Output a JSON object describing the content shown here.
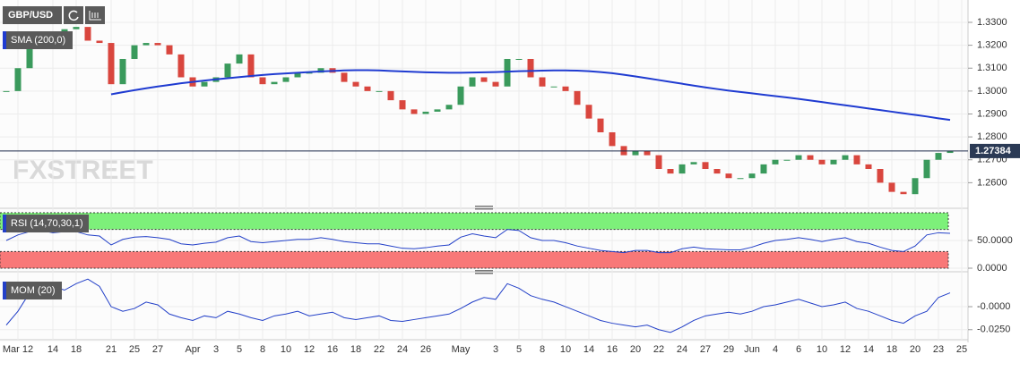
{
  "chart_data": [
    {
      "type": "candlestick",
      "title": "GBP/USD",
      "watermark": "FXSTREET",
      "categories": [
        null,
        "Mar 12",
        null,
        null,
        "14",
        null,
        "18",
        null,
        null,
        "21",
        null,
        "25",
        null,
        "27",
        null,
        null,
        "Apr",
        null,
        "3",
        null,
        "5",
        null,
        "8",
        null,
        "10",
        null,
        "12",
        null,
        "16",
        null,
        "18",
        null,
        "22",
        null,
        "24",
        null,
        "26",
        null,
        null,
        "May",
        null,
        null,
        "3",
        null,
        "5",
        null,
        "8",
        null,
        "10",
        null,
        "14",
        null,
        "16",
        null,
        "20",
        null,
        "22",
        null,
        "24",
        null,
        "27",
        null,
        "29",
        null,
        "Jun",
        null,
        "4",
        null,
        "6",
        null,
        "10",
        null,
        "12",
        null,
        "14",
        null,
        "18",
        null,
        "20",
        null,
        "23",
        null,
        "25"
      ],
      "close": [
        1.3,
        1.31,
        1.32,
        1.3255,
        1.324,
        1.327,
        1.328,
        1.322,
        1.321,
        1.303,
        1.314,
        1.32,
        1.321,
        1.32,
        1.316,
        1.306,
        1.302,
        1.304,
        1.306,
        1.312,
        1.316,
        1.306,
        1.303,
        1.304,
        1.306,
        1.308,
        1.308,
        1.31,
        1.308,
        1.304,
        1.302,
        1.3,
        1.3,
        1.296,
        1.292,
        1.29,
        1.291,
        1.292,
        1.294,
        1.302,
        1.306,
        1.304,
        1.302,
        1.314,
        1.314,
        1.306,
        1.302,
        1.302,
        1.3,
        1.294,
        1.288,
        1.282,
        1.276,
        1.272,
        1.274,
        1.272,
        1.266,
        1.264,
        1.268,
        1.269,
        1.266,
        1.264,
        1.262,
        1.262,
        1.264,
        1.268,
        1.27,
        1.27,
        1.272,
        1.27,
        1.268,
        1.27,
        1.272,
        1.268,
        1.266,
        1.26,
        1.256,
        1.255,
        1.262,
        1.27,
        1.273,
        1.2738,
        null
      ],
      "up_color": "#3a9a5c",
      "down_color": "#d9463e",
      "series": [
        {
          "name": "SMA (200,0)",
          "color": "#1f3bd1",
          "values": [
            null,
            null,
            null,
            null,
            null,
            null,
            null,
            null,
            null,
            1.2986,
            1.2995,
            1.3004,
            1.3012,
            1.302,
            1.3027,
            1.3034,
            1.304,
            1.3046,
            1.3051,
            1.3056,
            1.3061,
            1.3066,
            1.307,
            1.3074,
            1.3077,
            1.308,
            1.3083,
            1.3086,
            1.3088,
            1.309,
            1.3091,
            1.3091,
            1.309,
            1.3088,
            1.3086,
            1.3084,
            1.3082,
            1.3081,
            1.308,
            1.308,
            1.3081,
            1.3082,
            1.3083,
            1.3085,
            1.3087,
            1.3088,
            1.3089,
            1.309,
            1.309,
            1.3089,
            1.3087,
            1.3083,
            1.3078,
            1.3071,
            1.3064,
            1.3056,
            1.3048,
            1.304,
            1.3032,
            1.3024,
            1.3016,
            1.3009,
            1.3002,
            1.2996,
            1.299,
            1.2984,
            1.2978,
            1.2972,
            1.2966,
            1.2959,
            1.2952,
            1.2945,
            1.2938,
            1.2931,
            1.2924,
            1.2917,
            1.291,
            1.2903,
            1.2896,
            1.2889,
            1.2881,
            1.2874,
            null
          ]
        }
      ],
      "last_price": 1.27384,
      "ylim": [
        1.25,
        1.3378
      ],
      "yticks": [
        {
          "value": 1.26,
          "label": "1.2600"
        },
        {
          "value": 1.27,
          "label": "1.2700"
        },
        {
          "value": 1.28,
          "label": "1.2800"
        },
        {
          "value": 1.29,
          "label": "1.2900"
        },
        {
          "value": 1.3,
          "label": "1.3000"
        },
        {
          "value": 1.31,
          "label": "1.3100"
        },
        {
          "value": 1.32,
          "label": "1.3200"
        },
        {
          "value": 1.33,
          "label": "1.3300"
        }
      ]
    },
    {
      "type": "line",
      "title": "RSI (14,70,30,1)",
      "color": "#2340c8",
      "overbought": 70,
      "oversold": 30,
      "overbought_color": "#7df07a",
      "oversold_color": "#f87878",
      "values": [
        50,
        60,
        66,
        68,
        64,
        66,
        66,
        60,
        58,
        42,
        52,
        56,
        57,
        55,
        52,
        44,
        42,
        45,
        47,
        55,
        58,
        48,
        46,
        48,
        50,
        52,
        52,
        55,
        52,
        48,
        46,
        44,
        44,
        40,
        36,
        35,
        37,
        40,
        42,
        56,
        62,
        58,
        55,
        70,
        68,
        55,
        50,
        50,
        46,
        40,
        36,
        32,
        30,
        28,
        32,
        32,
        28,
        28,
        35,
        38,
        35,
        34,
        33,
        33,
        38,
        45,
        50,
        52,
        55,
        52,
        48,
        52,
        55,
        48,
        45,
        38,
        32,
        30,
        40,
        60,
        64,
        63,
        null
      ],
      "ylim": [
        0,
        100
      ],
      "yticks": [
        {
          "value": 50,
          "label": "50.0000"
        },
        {
          "value": 0,
          "label": "0.0000"
        }
      ]
    },
    {
      "type": "line",
      "title": "MOM (20)",
      "color": "#2340c8",
      "values": [
        -0.02,
        -0.005,
        0.015,
        0.02,
        0.022,
        0.018,
        0.025,
        0.03,
        0.022,
        0.0,
        -0.005,
        -0.002,
        0.005,
        0.002,
        -0.008,
        -0.012,
        -0.015,
        -0.01,
        -0.012,
        -0.005,
        -0.008,
        -0.012,
        -0.015,
        -0.01,
        -0.008,
        -0.005,
        -0.01,
        -0.008,
        -0.006,
        -0.012,
        -0.014,
        -0.012,
        -0.01,
        -0.015,
        -0.016,
        -0.014,
        -0.012,
        -0.01,
        -0.008,
        -0.002,
        0.005,
        0.01,
        0.008,
        0.025,
        0.02,
        0.012,
        0.008,
        0.005,
        0.0,
        -0.005,
        -0.01,
        -0.015,
        -0.018,
        -0.02,
        -0.022,
        -0.02,
        -0.025,
        -0.028,
        -0.022,
        -0.015,
        -0.01,
        -0.008,
        -0.006,
        -0.008,
        -0.005,
        0.0,
        0.002,
        0.005,
        0.008,
        0.004,
        0.0,
        0.002,
        0.005,
        -0.002,
        -0.005,
        -0.01,
        -0.015,
        -0.018,
        -0.01,
        -0.005,
        0.01,
        0.015,
        null
      ],
      "ylim": [
        -0.033,
        0.035
      ],
      "yticks": [
        {
          "value": 0,
          "label": "-0.0000"
        },
        {
          "value": -0.025,
          "label": "-0.0250"
        }
      ]
    }
  ]
}
